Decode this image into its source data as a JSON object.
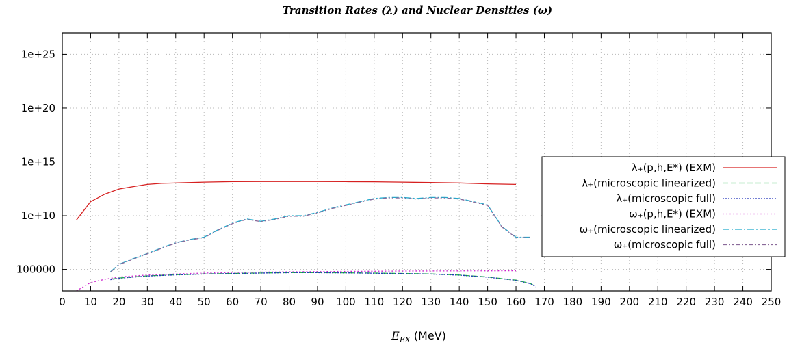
{
  "chart_data": {
    "type": "line",
    "title": "Transition Rates (λ) and Nuclear Densities (ω)",
    "xlabel_main": "E",
    "xlabel_sub": "EX",
    "xlabel_unit": " (MeV)",
    "ylabel": "",
    "xlim": [
      0,
      250
    ],
    "x_ticks": [
      0,
      10,
      20,
      30,
      40,
      50,
      60,
      70,
      80,
      90,
      100,
      110,
      120,
      130,
      140,
      150,
      160,
      170,
      180,
      190,
      200,
      210,
      220,
      230,
      240,
      250
    ],
    "y_scale": "log",
    "ylim": [
      1000,
      1e+27
    ],
    "y_ticks": [
      {
        "value": 100000,
        "label": "100000"
      },
      {
        "value": 10000000000.0,
        "label": "1e+10"
      },
      {
        "value": 1000000000000000.0,
        "label": "1e+15"
      },
      {
        "value": 1e+20,
        "label": "1e+20"
      },
      {
        "value": 1e+25,
        "label": "1e+25"
      }
    ],
    "grid": true,
    "legend_position": "right",
    "series": [
      {
        "name": "λ₊(p,h,E*) (EXM)",
        "color": "#d62020",
        "dash": "",
        "x": [
          5,
          10,
          15,
          20,
          25,
          30,
          35,
          40,
          50,
          60,
          70,
          80,
          90,
          100,
          110,
          120,
          130,
          140,
          150,
          160
        ],
        "y": [
          4000000000.0,
          200000000000.0,
          1000000000000.0,
          3000000000000.0,
          5000000000000.0,
          8000000000000.0,
          10000000000000.0,
          11000000000000.0,
          13000000000000.0,
          14500000000000.0,
          15000000000000.0,
          15000000000000.0,
          15000000000000.0,
          14500000000000.0,
          14000000000000.0,
          13000000000000.0,
          12000000000000.0,
          11000000000000.0,
          9000000000000.0,
          8000000000000.0
        ]
      },
      {
        "name": "λ₊(microscopic linearized)",
        "color": "#22bb44",
        "dash": "8 4",
        "x": [
          17,
          20,
          25,
          30,
          40,
          50,
          60,
          70,
          80,
          90,
          100,
          110,
          120,
          130,
          140,
          150,
          160,
          165,
          167
        ],
        "y": [
          12000,
          16000,
          20000,
          25000,
          32000,
          38000,
          42000,
          46000,
          50000,
          50000,
          48000,
          45000,
          42000,
          38000,
          30000,
          20000,
          10000,
          5000,
          2500
        ]
      },
      {
        "name": "λ₊(microscopic full)",
        "color": "#2233bb",
        "dash": "2 2",
        "x": [
          17,
          20,
          25,
          30,
          40,
          50,
          60,
          70,
          80,
          90,
          100,
          110,
          120,
          130,
          140,
          150,
          160,
          165,
          167
        ],
        "y": [
          11000,
          15000,
          19000,
          24000,
          31000,
          37000,
          41000,
          45000,
          49000,
          49000,
          47000,
          44000,
          41000,
          37000,
          29000,
          19000,
          9500,
          4800,
          2400
        ]
      },
      {
        "name": "ω₊(p,h,E*) (EXM)",
        "color": "#cc22cc",
        "dash": "2 3",
        "x": [
          5,
          8,
          10,
          15,
          20,
          30,
          40,
          50,
          60,
          80,
          100,
          120,
          140,
          160
        ],
        "y": [
          1000,
          3000,
          6000,
          12000,
          20000,
          30000,
          38000,
          45000,
          52000,
          60000,
          65000,
          70000,
          72000,
          74000
        ]
      },
      {
        "name": "ω₊(microscopic linearized)",
        "color": "#22aacc",
        "dash": "10 3 2 3",
        "x": [
          17,
          20,
          25,
          30,
          35,
          40,
          45,
          50,
          55,
          60,
          65,
          70,
          75,
          80,
          85,
          90,
          95,
          100,
          105,
          110,
          115,
          120,
          125,
          130,
          135,
          140,
          145,
          150,
          155,
          160,
          165
        ],
        "y": [
          60000,
          300000,
          1000000.0,
          3000000.0,
          10000000.0,
          30000000.0,
          60000000.0,
          100000000.0,
          500000000.0,
          2000000000.0,
          5000000000.0,
          3000000000.0,
          5000000000.0,
          10000000000.0,
          10000000000.0,
          20000000000.0,
          50000000000.0,
          100000000000.0,
          200000000000.0,
          400000000000.0,
          500000000000.0,
          500000000000.0,
          400000000000.0,
          500000000000.0,
          500000000000.0,
          400000000000.0,
          200000000000.0,
          100000000000.0,
          1000000000.0,
          100000000.0,
          100000000.0
        ]
      },
      {
        "name": "ω₊(microscopic full)",
        "color": "#8a6a9a",
        "dash": "6 3 2 3 2 3",
        "x": [
          17,
          20,
          25,
          30,
          35,
          40,
          45,
          50,
          55,
          60,
          65,
          70,
          75,
          80,
          85,
          90,
          95,
          100,
          105,
          110,
          115,
          120,
          125,
          130,
          135,
          140,
          145,
          150,
          155,
          160,
          165
        ],
        "y": [
          55000,
          280000,
          900000.0,
          2800000.0,
          9000000.0,
          28000000.0,
          55000000.0,
          90000000.0,
          450000000.0,
          1800000000.0,
          4500000000.0,
          2800000000.0,
          4500000000.0,
          9000000000.0,
          9000000000.0,
          18000000000.0,
          45000000000.0,
          90000000000.0,
          180000000000.0,
          350000000000.0,
          450000000000.0,
          450000000000.0,
          350000000000.0,
          450000000000.0,
          450000000000.0,
          350000000000.0,
          180000000000.0,
          90000000000.0,
          900000000.0,
          90000000.0,
          90000000.0
        ]
      }
    ]
  }
}
